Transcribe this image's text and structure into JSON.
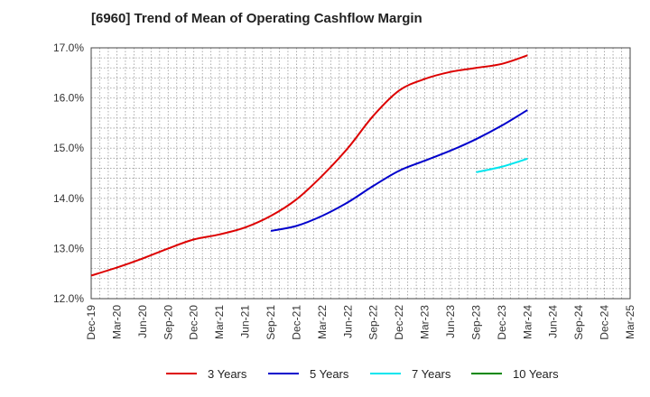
{
  "chart_data": {
    "type": "line",
    "title": "[6960]  Trend of Mean of Operating Cashflow Margin",
    "xlabel": "",
    "ylabel": "",
    "categories": [
      "Dec-19",
      "Mar-20",
      "Jun-20",
      "Sep-20",
      "Dec-20",
      "Mar-21",
      "Jun-21",
      "Sep-21",
      "Dec-21",
      "Mar-22",
      "Jun-22",
      "Sep-22",
      "Dec-22",
      "Mar-23",
      "Jun-23",
      "Sep-23",
      "Dec-23",
      "Mar-24",
      "Jun-24",
      "Sep-24",
      "Dec-24",
      "Mar-25"
    ],
    "ylim": [
      12.0,
      17.0
    ],
    "yticks": [
      "12.0%",
      "13.0%",
      "14.0%",
      "15.0%",
      "16.0%",
      "17.0%"
    ],
    "grid": true,
    "legend_position": "bottom",
    "series": [
      {
        "name": "3 Years",
        "color": "#dd0000",
        "values": [
          12.46,
          12.62,
          12.8,
          13.0,
          13.18,
          13.28,
          13.42,
          13.65,
          13.98,
          14.45,
          15.0,
          15.65,
          16.15,
          16.38,
          16.52,
          16.6,
          16.68,
          16.85,
          null,
          null,
          null,
          null
        ]
      },
      {
        "name": "5 Years",
        "color": "#0000cc",
        "values": [
          null,
          null,
          null,
          null,
          null,
          null,
          null,
          13.35,
          13.45,
          13.65,
          13.92,
          14.25,
          14.55,
          14.75,
          14.95,
          15.18,
          15.45,
          15.76,
          null,
          null,
          null,
          null
        ]
      },
      {
        "name": "7 Years",
        "color": "#00e5ee",
        "values": [
          null,
          null,
          null,
          null,
          null,
          null,
          null,
          null,
          null,
          null,
          null,
          null,
          null,
          null,
          null,
          14.52,
          14.63,
          14.79,
          null,
          null,
          null,
          null
        ]
      },
      {
        "name": "10 Years",
        "color": "#008800",
        "values": [
          null,
          null,
          null,
          null,
          null,
          null,
          null,
          null,
          null,
          null,
          null,
          null,
          null,
          null,
          null,
          null,
          null,
          null,
          null,
          null,
          null,
          null
        ]
      }
    ]
  }
}
